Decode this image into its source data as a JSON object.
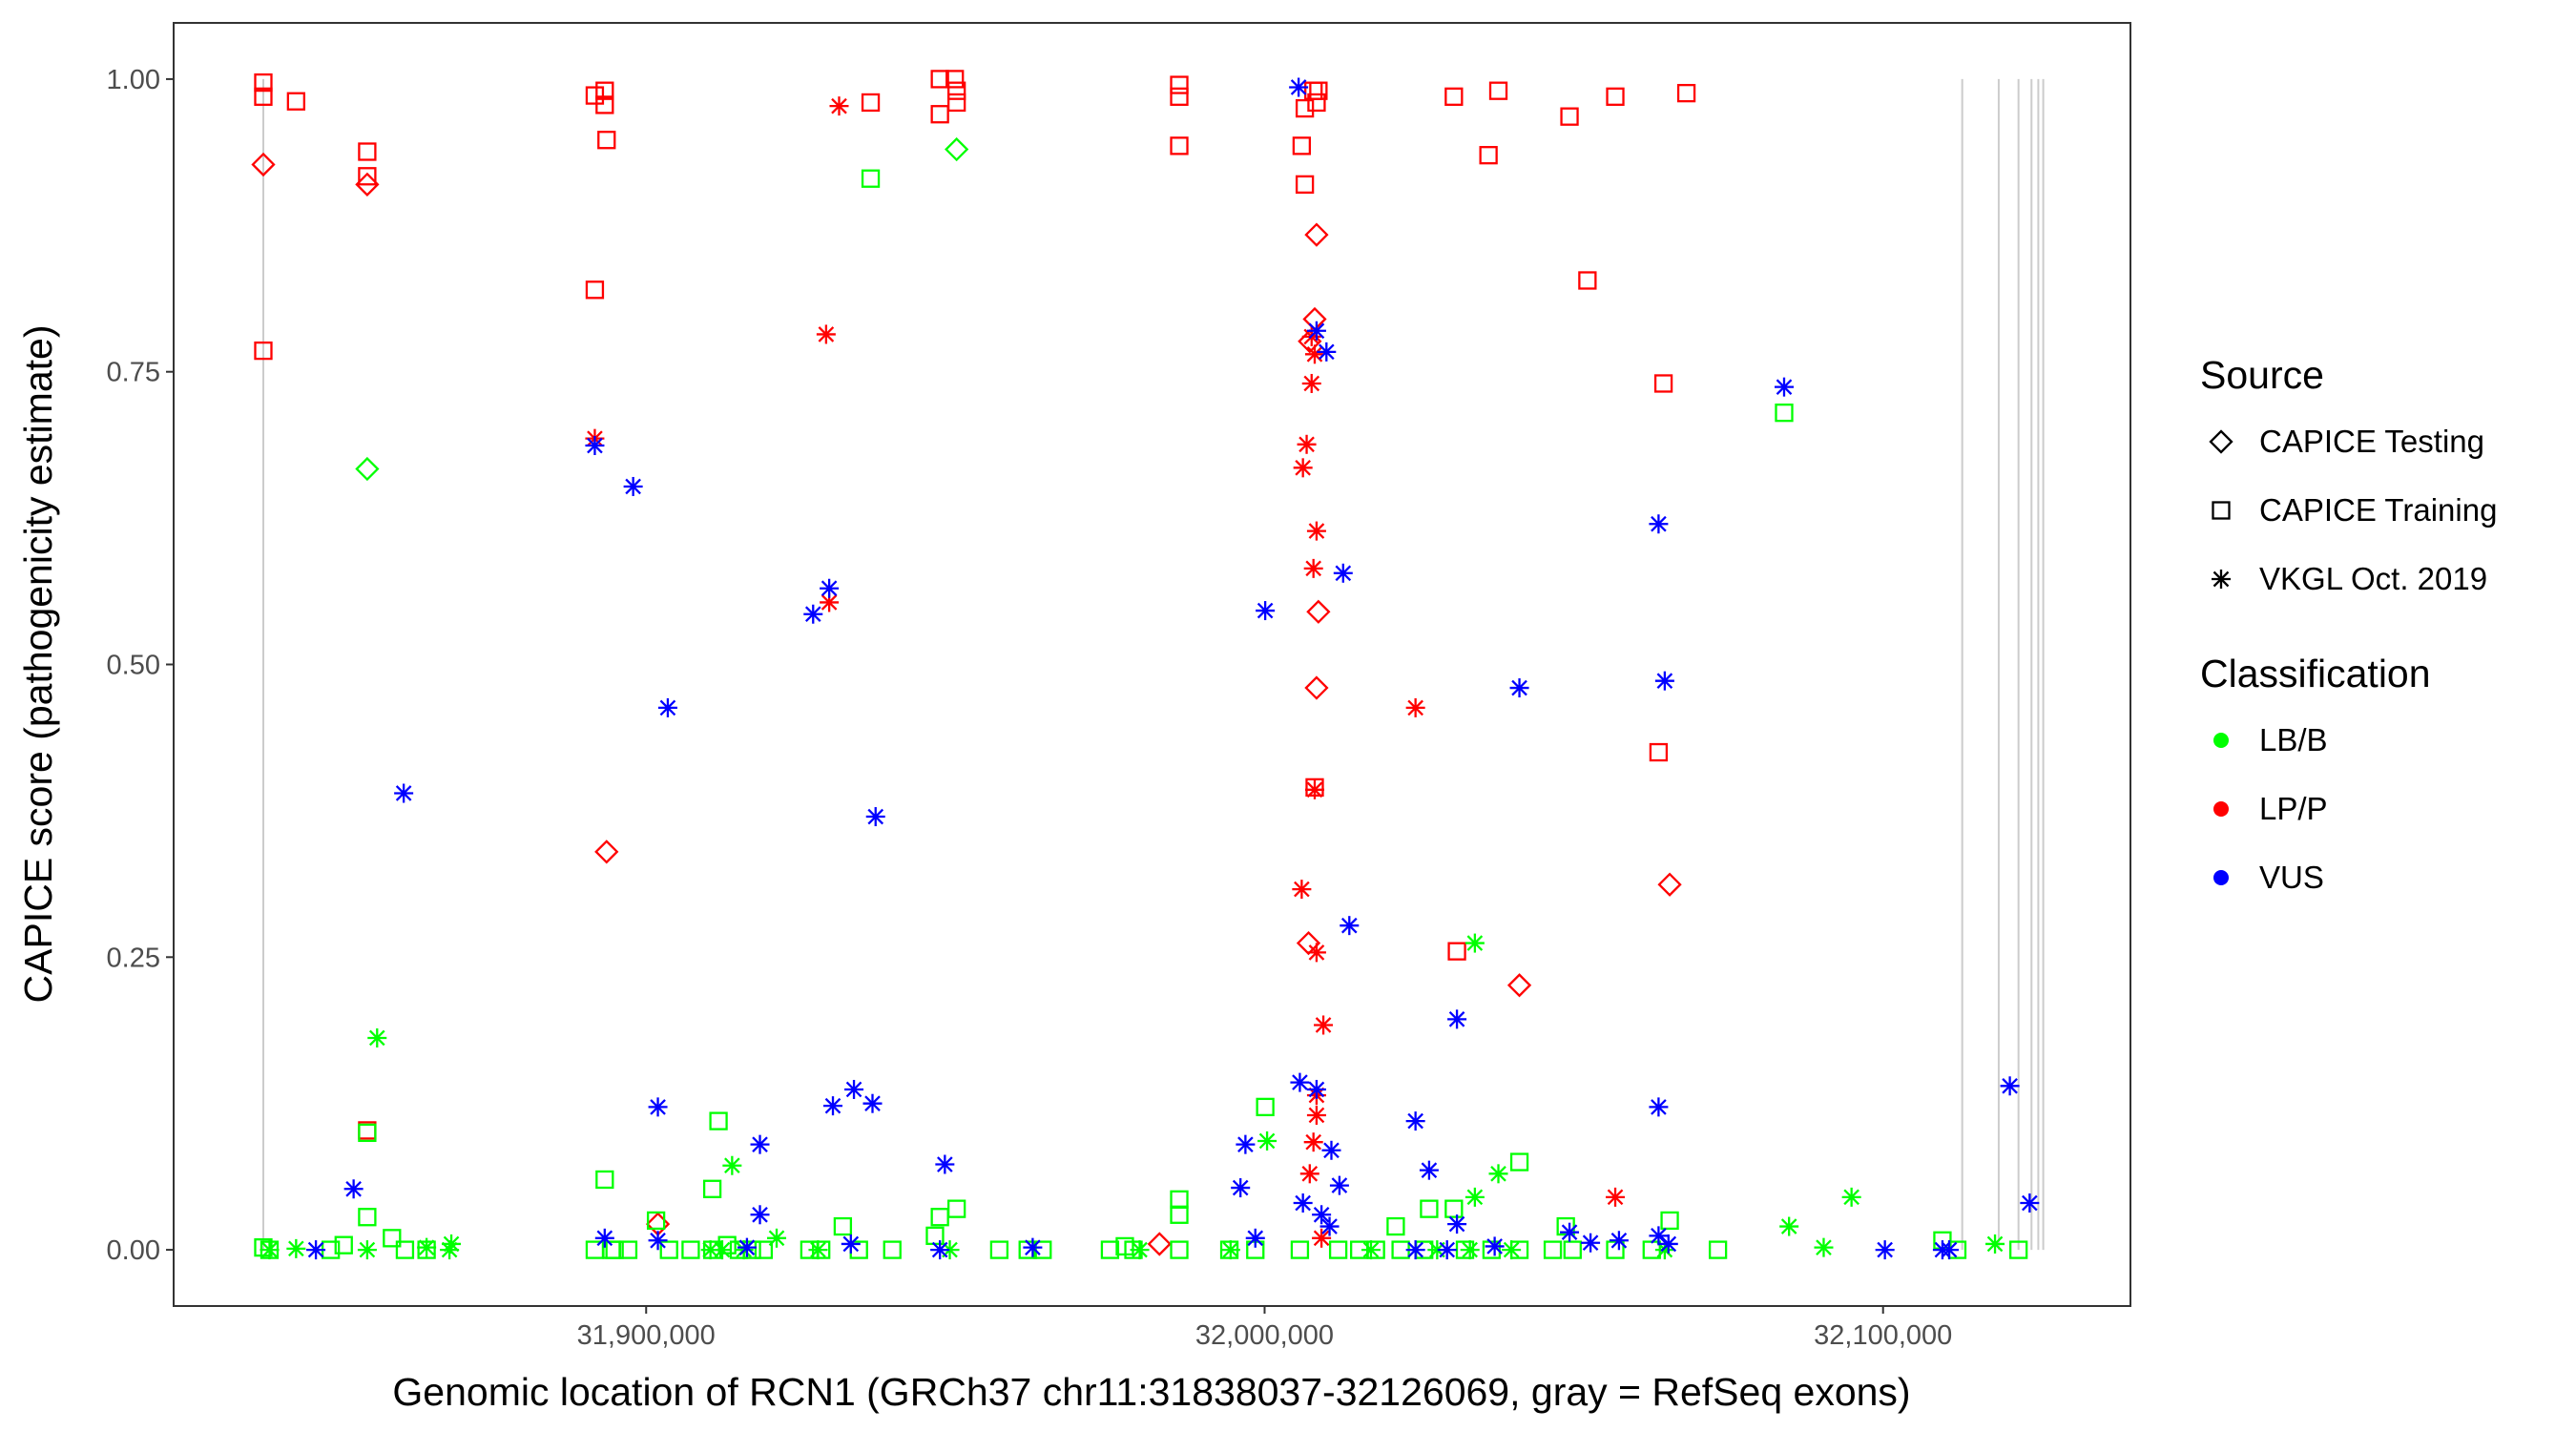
{
  "chart_data": {
    "type": "scatter",
    "title": "",
    "xlabel": "Genomic location of RCN1 (GRCh37 chr11:31838037-32126069, gray = RefSeq exons)",
    "ylabel": "CAPICE score (pathogenicity estimate)",
    "xlim": [
      31823600,
      32140000
    ],
    "ylim": [
      -0.048,
      1.048
    ],
    "x_ticks": [
      31900000,
      32000000,
      32100000
    ],
    "x_tick_labels": [
      "31,900,000",
      "32,000,000",
      "32,100,000"
    ],
    "y_ticks": [
      0,
      0.25,
      0.5,
      0.75,
      1.0
    ],
    "y_tick_labels": [
      "0.00",
      "0.25",
      "0.50",
      "0.75",
      "1.00"
    ],
    "grid": false,
    "legend_placement": "right",
    "exon_lines": [
      31838100,
      32112800,
      32118700,
      32121900,
      32124000,
      32125100,
      32125900
    ],
    "exon_color": "#cccccc",
    "legend": {
      "source_title": "Source",
      "sources": [
        {
          "key": "testing",
          "label": "CAPICE Testing",
          "shape": "diamond"
        },
        {
          "key": "training",
          "label": "CAPICE Training",
          "shape": "square"
        },
        {
          "key": "vkgl",
          "label": "VKGL Oct. 2019",
          "shape": "asterisk"
        }
      ],
      "class_title": "Classification",
      "classes": [
        {
          "key": "LB/B",
          "label": "LB/B",
          "color": "#00ff00"
        },
        {
          "key": "LP/P",
          "label": "LP/P",
          "color": "#ff0000"
        },
        {
          "key": "VUS",
          "label": "VUS",
          "color": "#0000ff"
        }
      ]
    },
    "series": [
      {
        "source": "training",
        "classification": "LP/P",
        "points": [
          [
            31838100,
            0.997
          ],
          [
            31838100,
            0.985
          ],
          [
            31843400,
            0.981
          ],
          [
            31854900,
            0.938
          ],
          [
            31854900,
            0.917
          ],
          [
            31838100,
            0.768
          ],
          [
            31854900,
            0.102
          ],
          [
            31891700,
            0.986
          ],
          [
            31893300,
            0.99
          ],
          [
            31893300,
            0.978
          ],
          [
            31893600,
            0.948
          ],
          [
            31891700,
            0.82
          ],
          [
            31936300,
            0.98
          ],
          [
            31947500,
            1.0
          ],
          [
            31949900,
            1.0
          ],
          [
            31950200,
            0.99
          ],
          [
            31950200,
            0.98
          ],
          [
            31947500,
            0.97
          ],
          [
            31986200,
            0.995
          ],
          [
            31986200,
            0.985
          ],
          [
            31986200,
            0.943
          ],
          [
            32006000,
            0.943
          ],
          [
            32006500,
            0.91
          ],
          [
            32006500,
            0.975
          ],
          [
            32007900,
            0.99
          ],
          [
            32008400,
            0.98
          ],
          [
            32008700,
            0.99
          ],
          [
            32030600,
            0.985
          ],
          [
            32037800,
            0.99
          ],
          [
            32036200,
            0.935
          ],
          [
            32049300,
            0.968
          ],
          [
            32056700,
            0.985
          ],
          [
            32068200,
            0.988
          ],
          [
            32052200,
            0.828
          ],
          [
            32064500,
            0.74
          ],
          [
            32063700,
            0.425
          ],
          [
            32008100,
            0.395
          ],
          [
            32031100,
            0.255
          ]
        ]
      },
      {
        "source": "testing",
        "classification": "LP/P",
        "points": [
          [
            31838100,
            0.927
          ],
          [
            31854900,
            0.91
          ],
          [
            31893600,
            0.34
          ],
          [
            31901900,
            0.022
          ],
          [
            31983000,
            0.005
          ],
          [
            32008400,
            0.867
          ],
          [
            32008100,
            0.795
          ],
          [
            32007300,
            0.776
          ],
          [
            32008700,
            0.545
          ],
          [
            32008400,
            0.48
          ],
          [
            32007100,
            0.262
          ],
          [
            32041200,
            0.226
          ],
          [
            32065500,
            0.312
          ]
        ]
      },
      {
        "source": "vkgl",
        "classification": "LP/P",
        "points": [
          [
            31931200,
            0.977
          ],
          [
            31929100,
            0.782
          ],
          [
            31891700,
            0.693
          ],
          [
            31929600,
            0.553
          ],
          [
            32007600,
            0.78
          ],
          [
            32008100,
            0.765
          ],
          [
            32007600,
            0.74
          ],
          [
            32006800,
            0.688
          ],
          [
            32006200,
            0.668
          ],
          [
            32008400,
            0.614
          ],
          [
            32007900,
            0.582
          ],
          [
            32024400,
            0.463
          ],
          [
            32008100,
            0.393
          ],
          [
            32006000,
            0.308
          ],
          [
            32008400,
            0.254
          ],
          [
            32009500,
            0.192
          ],
          [
            32008400,
            0.132
          ],
          [
            32008400,
            0.115
          ],
          [
            32007900,
            0.092
          ],
          [
            32007300,
            0.065
          ],
          [
            32056700,
            0.045
          ],
          [
            32009200,
            0.01
          ]
        ]
      },
      {
        "source": "testing",
        "classification": "LB/B",
        "points": [
          [
            31950200,
            0.94
          ],
          [
            31854900,
            0.667
          ]
        ]
      },
      {
        "source": "training",
        "classification": "LB/B",
        "points": [
          [
            31936300,
            0.915
          ],
          [
            32084000,
            0.715
          ],
          [
            31854900,
            0.1
          ],
          [
            31911700,
            0.11
          ],
          [
            32000100,
            0.122
          ],
          [
            31893300,
            0.06
          ],
          [
            31910700,
            0.052
          ],
          [
            32041200,
            0.075
          ],
          [
            31986200,
            0.043
          ],
          [
            31986200,
            0.03
          ],
          [
            31854900,
            0.028
          ],
          [
            32065500,
            0.025
          ],
          [
            31950200,
            0.035
          ],
          [
            31947500,
            0.028
          ],
          [
            32026600,
            0.035
          ],
          [
            32030600,
            0.035
          ],
          [
            32021200,
            0.02
          ],
          [
            32048700,
            0.02
          ],
          [
            31858900,
            0.01
          ],
          [
            31931800,
            0.02
          ],
          [
            31901600,
            0.025
          ],
          [
            31838100,
            0.002
          ],
          [
            31839100,
            0.0
          ],
          [
            31849000,
            0.0
          ],
          [
            31851100,
            0.004
          ],
          [
            31861000,
            0.0
          ],
          [
            31864500,
            0.0
          ],
          [
            31891700,
            0.0
          ],
          [
            31894900,
            0.0
          ],
          [
            31897100,
            0.0
          ],
          [
            31903700,
            0.0
          ],
          [
            31907200,
            0.0
          ],
          [
            31910700,
            0.0
          ],
          [
            31913100,
            0.004
          ],
          [
            31915000,
            0.0
          ],
          [
            31917100,
            0.0
          ],
          [
            31919000,
            0.0
          ],
          [
            31926400,
            0.0
          ],
          [
            31928300,
            0.0
          ],
          [
            31934400,
            0.0
          ],
          [
            31939800,
            0.0
          ],
          [
            31946700,
            0.012
          ],
          [
            31957100,
            0.0
          ],
          [
            31961700,
            0.0
          ],
          [
            31964100,
            0.0
          ],
          [
            31975000,
            0.0
          ],
          [
            31977400,
            0.003
          ],
          [
            31978800,
            0.0
          ],
          [
            31986200,
            0.0
          ],
          [
            31994300,
            0.0
          ],
          [
            31998500,
            0.0
          ],
          [
            32005700,
            0.0
          ],
          [
            32011900,
            0.0
          ],
          [
            32015300,
            0.0
          ],
          [
            32018000,
            0.0
          ],
          [
            32022000,
            0.0
          ],
          [
            32025800,
            0.0
          ],
          [
            32032400,
            0.0
          ],
          [
            32036700,
            0.0
          ],
          [
            32041200,
            0.0
          ],
          [
            32046600,
            0.0
          ],
          [
            32049800,
            0.0
          ],
          [
            32056700,
            0.0
          ],
          [
            32062600,
            0.0
          ],
          [
            32073300,
            0.0
          ],
          [
            32109600,
            0.008
          ],
          [
            32121900,
            0.0
          ],
          [
            32112000,
            0.0
          ],
          [
            31894400,
            0.0
          ]
        ]
      },
      {
        "source": "vkgl",
        "classification": "LB/B",
        "points": [
          [
            31856500,
            0.181
          ],
          [
            32034000,
            0.262
          ],
          [
            31913900,
            0.072
          ],
          [
            32000400,
            0.093
          ],
          [
            32037800,
            0.065
          ],
          [
            32034000,
            0.045
          ],
          [
            32094900,
            0.045
          ],
          [
            32084800,
            0.02
          ],
          [
            32090400,
            0.002
          ],
          [
            32118100,
            0.005
          ],
          [
            31868500,
            0.005
          ],
          [
            31864500,
            0.002
          ],
          [
            31843400,
            0.001
          ],
          [
            31921100,
            0.01
          ],
          [
            31839100,
            0.0
          ],
          [
            31854900,
            0.0
          ],
          [
            31868200,
            0.0
          ],
          [
            31910400,
            0.0
          ],
          [
            31912300,
            0.0
          ],
          [
            31915800,
            0.0
          ],
          [
            31927800,
            0.0
          ],
          [
            31949100,
            0.0
          ],
          [
            31979800,
            0.0
          ],
          [
            31994500,
            0.0
          ],
          [
            32017200,
            0.0
          ],
          [
            32027900,
            0.0
          ],
          [
            32033200,
            0.0
          ],
          [
            32039900,
            0.0
          ],
          [
            32064700,
            0.0
          ]
        ]
      },
      {
        "source": "vkgl",
        "classification": "VUS",
        "points": [
          [
            32005500,
            0.993
          ],
          [
            32008400,
            0.785
          ],
          [
            32010000,
            0.767
          ],
          [
            32084000,
            0.737
          ],
          [
            31891700,
            0.687
          ],
          [
            31897900,
            0.652
          ],
          [
            32063700,
            0.62
          ],
          [
            32012700,
            0.578
          ],
          [
            31929600,
            0.565
          ],
          [
            31927000,
            0.543
          ],
          [
            32000100,
            0.546
          ],
          [
            31903500,
            0.463
          ],
          [
            32041200,
            0.48
          ],
          [
            32064700,
            0.486
          ],
          [
            31860800,
            0.39
          ],
          [
            31937100,
            0.37
          ],
          [
            32013700,
            0.277
          ],
          [
            32031100,
            0.197
          ],
          [
            32005700,
            0.143
          ],
          [
            32008400,
            0.137
          ],
          [
            31933600,
            0.137
          ],
          [
            31936600,
            0.125
          ],
          [
            31930200,
            0.123
          ],
          [
            31901900,
            0.122
          ],
          [
            32063700,
            0.122
          ],
          [
            32120500,
            0.14
          ],
          [
            32024400,
            0.11
          ],
          [
            31996900,
            0.09
          ],
          [
            31918400,
            0.09
          ],
          [
            32010800,
            0.085
          ],
          [
            31948300,
            0.073
          ],
          [
            32026600,
            0.068
          ],
          [
            31996100,
            0.053
          ],
          [
            31852700,
            0.052
          ],
          [
            32012100,
            0.055
          ],
          [
            32123700,
            0.04
          ],
          [
            32006200,
            0.04
          ],
          [
            31918400,
            0.03
          ],
          [
            32031100,
            0.022
          ],
          [
            32049300,
            0.015
          ],
          [
            32063700,
            0.012
          ],
          [
            31893300,
            0.01
          ],
          [
            31901900,
            0.008
          ],
          [
            31998500,
            0.01
          ],
          [
            32010500,
            0.02
          ],
          [
            32052700,
            0.006
          ],
          [
            32057300,
            0.008
          ],
          [
            31846600,
            0.0
          ],
          [
            32100300,
            0.0
          ],
          [
            32109600,
            0.0
          ],
          [
            32110700,
            0.0
          ],
          [
            32029500,
            0.0
          ],
          [
            32024400,
            0.0
          ],
          [
            31947500,
            0.0
          ],
          [
            31916300,
            0.002
          ],
          [
            31962500,
            0.002
          ],
          [
            32037200,
            0.003
          ],
          [
            32065300,
            0.005
          ],
          [
            31933100,
            0.005
          ],
          [
            32009200,
            0.03
          ]
        ]
      }
    ]
  }
}
